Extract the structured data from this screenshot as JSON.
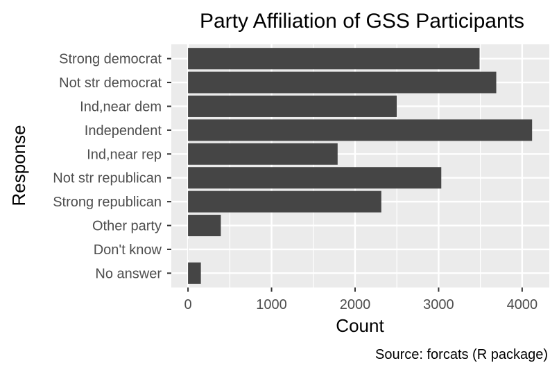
{
  "chart_data": {
    "type": "bar",
    "orientation": "horizontal",
    "title": "Party Affiliation of GSS Participants",
    "xlabel": "Count",
    "ylabel": "Response",
    "caption": "Source: forcats (R package)",
    "categories": [
      "Strong democrat",
      "Not str democrat",
      "Ind,near dem",
      "Independent",
      "Ind,near rep",
      "Not str republican",
      "Strong republican",
      "Other party",
      "Don't know",
      "No answer"
    ],
    "values": [
      3490,
      3690,
      2499,
      4119,
      1791,
      3032,
      2314,
      393,
      1,
      154
    ],
    "xlim": [
      -200,
      4325
    ],
    "xticks": [
      0,
      1000,
      2000,
      3000,
      4000
    ],
    "xtick_labels": [
      "0",
      "1000",
      "2000",
      "3000",
      "4000"
    ],
    "grid": true,
    "legend": "none",
    "colors": {
      "bar": "#454545",
      "panel": "#ebebeb",
      "grid": "#ffffff",
      "tick_text": "#4d4d4d",
      "tick_mark": "#333333"
    }
  }
}
